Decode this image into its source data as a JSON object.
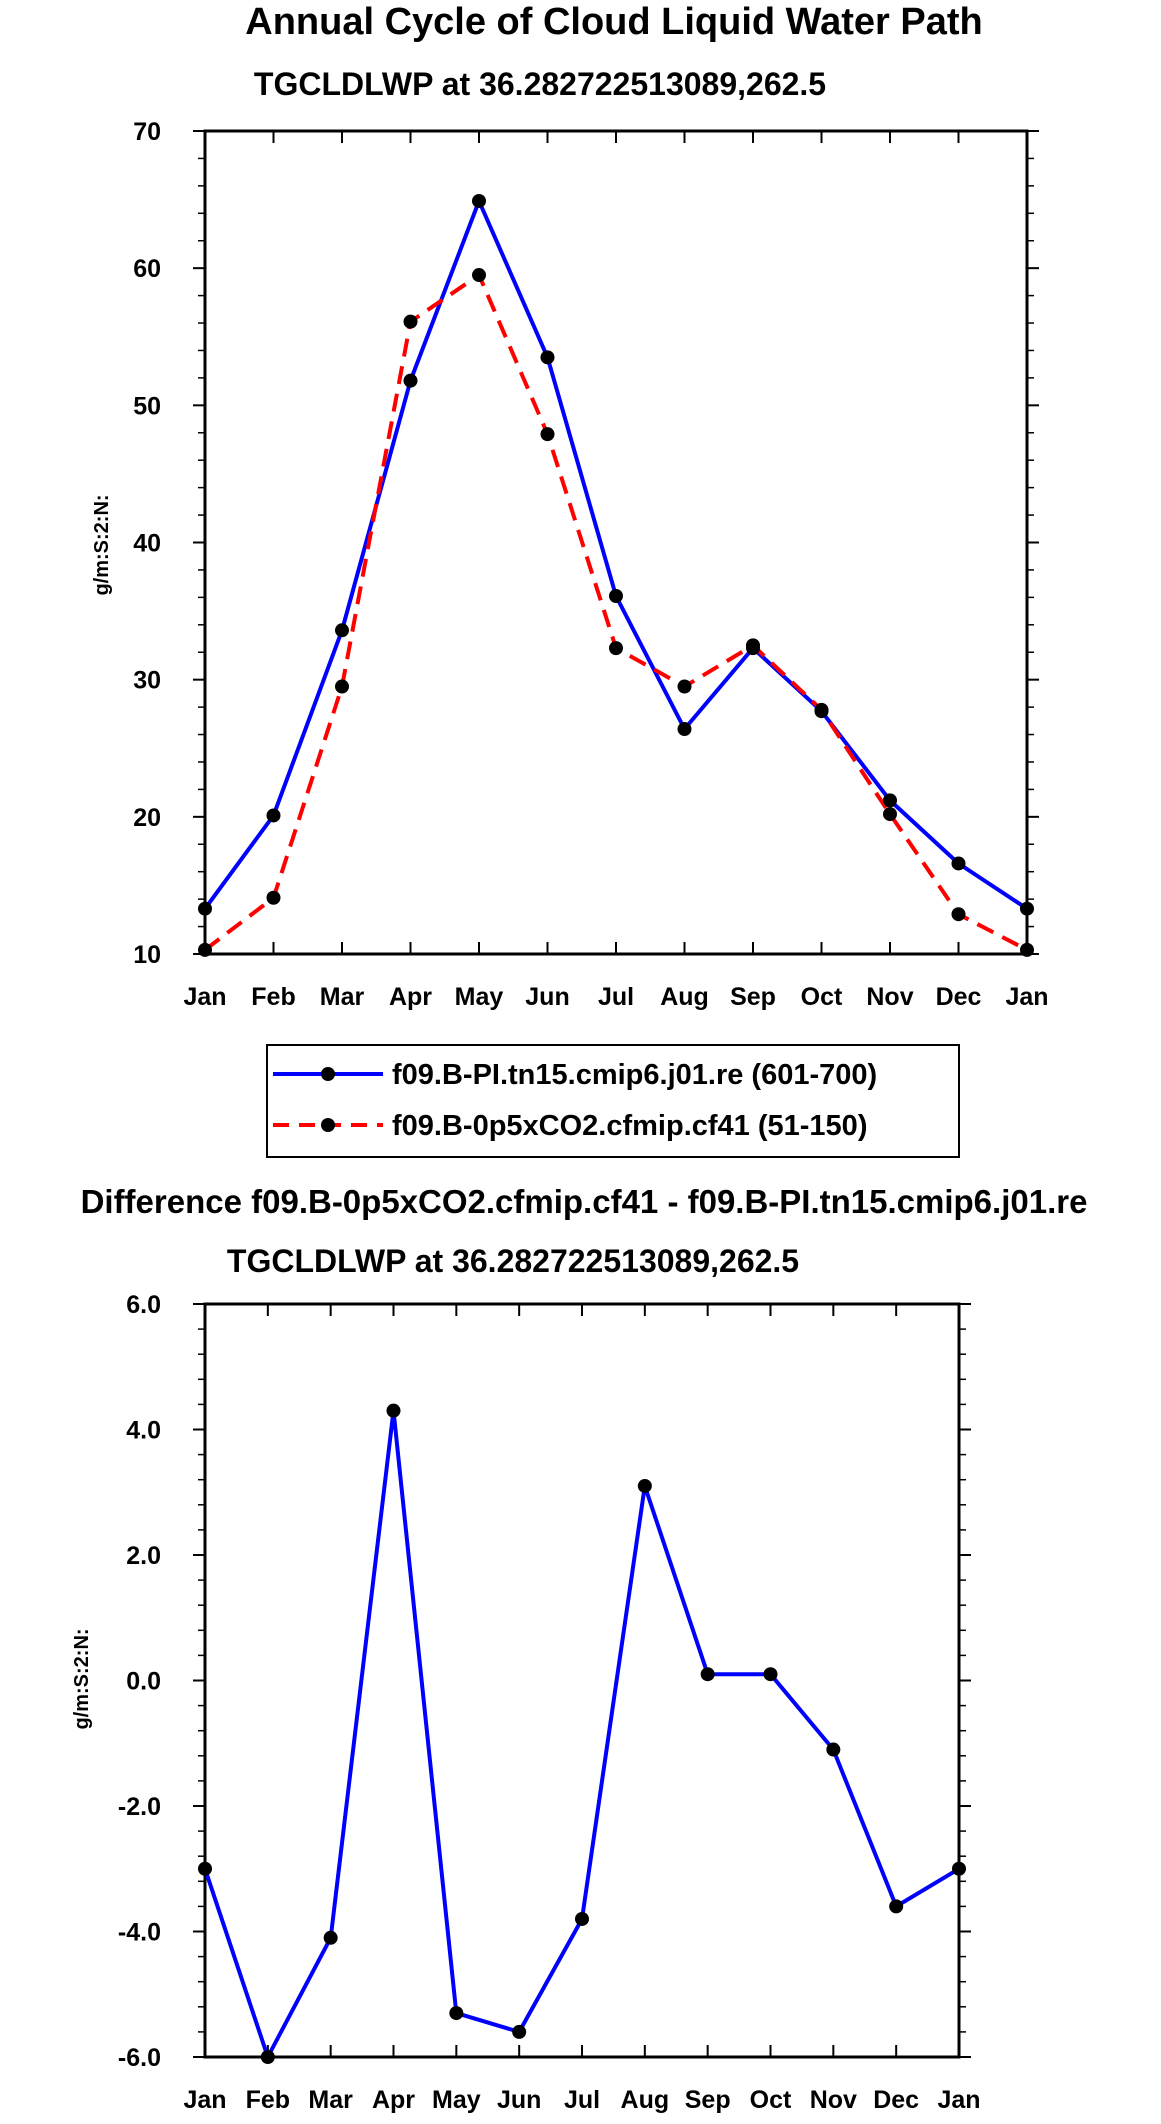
{
  "chart_data": [
    {
      "type": "line",
      "title": "Annual Cycle of Cloud Liquid Water Path",
      "subtitle": "TGCLDLWP at 36.282722513089,262.5",
      "ylabel": "g/m:S:2:N:",
      "xlabel": "",
      "categories": [
        "Jan",
        "Feb",
        "Mar",
        "Apr",
        "May",
        "Jun",
        "Jul",
        "Aug",
        "Sep",
        "Oct",
        "Nov",
        "Dec",
        "Jan"
      ],
      "ylim": [
        10,
        70
      ],
      "yticks": [
        10,
        20,
        30,
        40,
        50,
        60,
        70
      ],
      "ytick_labels": [
        "10",
        "20",
        "30",
        "40",
        "50",
        "60",
        "70"
      ],
      "series": [
        {
          "name": "f09.B-PI.tn15.cmip6.j01.re (601-700)",
          "color": "#0000ff",
          "dash": "solid",
          "values": [
            13.3,
            20.1,
            33.6,
            51.8,
            64.9,
            53.5,
            36.1,
            26.4,
            32.3,
            27.7,
            21.2,
            16.6,
            13.3
          ]
        },
        {
          "name": "f09.B-0p5xCO2.cfmip.cf41 (51-150)",
          "color": "#ff0000",
          "dash": "dashed",
          "values": [
            10.3,
            14.1,
            29.5,
            56.1,
            59.5,
            47.9,
            32.3,
            29.5,
            32.5,
            27.8,
            20.2,
            12.9,
            10.3
          ]
        }
      ],
      "legend_position": "bottom"
    },
    {
      "type": "line",
      "title": "Difference f09.B-0p5xCO2.cfmip.cf41 - f09.B-PI.tn15.cmip6.j01.re",
      "subtitle": "TGCLDLWP at 36.282722513089,262.5",
      "ylabel": "g/m:S:2:N:",
      "xlabel": "",
      "categories": [
        "Jan",
        "Feb",
        "Mar",
        "Apr",
        "May",
        "Jun",
        "Jul",
        "Aug",
        "Sep",
        "Oct",
        "Nov",
        "Dec",
        "Jan"
      ],
      "ylim": [
        -6.0,
        6.0
      ],
      "yticks": [
        -6.0,
        -4.0,
        -2.0,
        0.0,
        2.0,
        4.0,
        6.0
      ],
      "ytick_labels": [
        "-6.0",
        "-4.0",
        "-2.0",
        "0.0",
        "2.0",
        "4.0",
        "6.0"
      ],
      "series": [
        {
          "name": "Difference",
          "color": "#0000ff",
          "dash": "solid",
          "values": [
            -3.0,
            -6.0,
            -4.1,
            4.3,
            -5.3,
            -5.6,
            -3.8,
            3.1,
            0.1,
            0.1,
            -1.1,
            -3.6,
            -3.0
          ]
        }
      ]
    }
  ]
}
